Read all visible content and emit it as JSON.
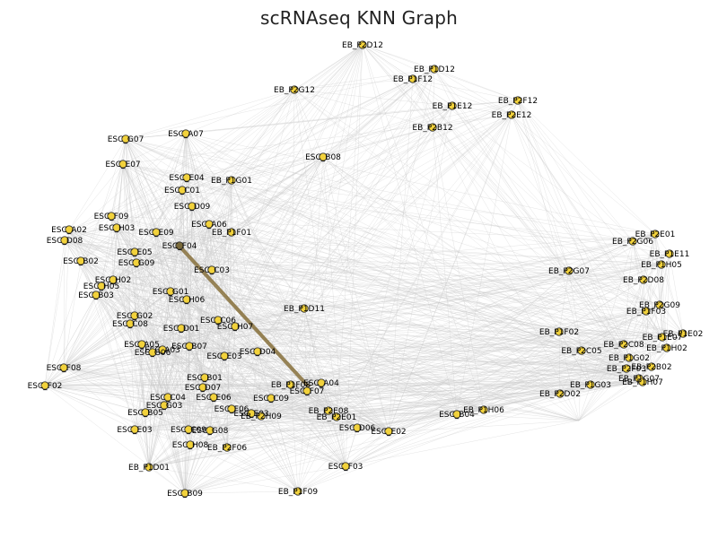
{
  "title": "scRNAseq KNN Graph",
  "colors": {
    "node_fill": "#f2d23c",
    "node_stroke": "#2b2b2b",
    "edge": "#c8c8c8",
    "highlight_node": "#7a6a3a",
    "highlight_edge": "#8a7340",
    "background": "#ffffff"
  },
  "nodes": [
    {
      "label": "EB_P2D12",
      "highlight": false
    },
    {
      "label": "EB_P1D12",
      "highlight": false
    },
    {
      "label": "EB_P1F12",
      "highlight": false
    },
    {
      "label": "EB_P2G12",
      "highlight": false
    },
    {
      "label": "EB_P2F12",
      "highlight": false
    },
    {
      "label": "EB_P1E12",
      "highlight": false
    },
    {
      "label": "EB_P2E12",
      "highlight": false
    },
    {
      "label": "EB_P2B12",
      "highlight": false
    },
    {
      "label": "ESC_G07",
      "highlight": false
    },
    {
      "label": "ESC_A07",
      "highlight": false
    },
    {
      "label": "ESC_B08",
      "highlight": false
    },
    {
      "label": "ESC_E07",
      "highlight": false
    },
    {
      "label": "ESC_E04",
      "highlight": false
    },
    {
      "label": "EB_P1G01",
      "highlight": false
    },
    {
      "label": "ESC_C01",
      "highlight": false
    },
    {
      "label": "ESC_D09",
      "highlight": false
    },
    {
      "label": "ESC_F09",
      "highlight": false
    },
    {
      "label": "ESC_H03",
      "highlight": false
    },
    {
      "label": "ESC_A06",
      "highlight": false
    },
    {
      "label": "EB_P1F01",
      "highlight": false
    },
    {
      "label": "ESC_A02",
      "highlight": false
    },
    {
      "label": "ESC_E09",
      "highlight": false
    },
    {
      "label": "ESC_D08",
      "highlight": false
    },
    {
      "label": "ESC_F04",
      "highlight": true
    },
    {
      "label": "ESC_E05",
      "highlight": false
    },
    {
      "label": "ESC_B02",
      "highlight": false
    },
    {
      "label": "ESC_G09",
      "highlight": false
    },
    {
      "label": "ESC_C03",
      "highlight": false
    },
    {
      "label": "ESC_H02",
      "highlight": false
    },
    {
      "label": "ESC_H05",
      "highlight": false
    },
    {
      "label": "ESC_B03",
      "highlight": false
    },
    {
      "label": "ESC_G01",
      "highlight": false
    },
    {
      "label": "ESC_H06",
      "highlight": false
    },
    {
      "label": "EB_P1D11",
      "highlight": false
    },
    {
      "label": "ESC_G02",
      "highlight": false
    },
    {
      "label": "ESC_C08",
      "highlight": false
    },
    {
      "label": "ESC_C06",
      "highlight": false
    },
    {
      "label": "ESC_H07",
      "highlight": false
    },
    {
      "label": "ESC_D01",
      "highlight": false
    },
    {
      "label": "ESC_A05",
      "highlight": false
    },
    {
      "label": "ESC_B07",
      "highlight": false
    },
    {
      "label": "ESC_A03",
      "highlight": false
    },
    {
      "label": "ESC_D04",
      "highlight": false
    },
    {
      "label": "ESC_G06",
      "highlight": false
    },
    {
      "label": "ESC_E03",
      "highlight": false
    },
    {
      "label": "ESC_F08",
      "highlight": false
    },
    {
      "label": "ESC_B01",
      "highlight": false
    },
    {
      "label": "ESC_F02",
      "highlight": false
    },
    {
      "label": "ESC_D07",
      "highlight": false
    },
    {
      "label": "EB_P1F08",
      "highlight": false
    },
    {
      "label": "ESC_A04",
      "highlight": false
    },
    {
      "label": "ESC_F07",
      "highlight": false
    },
    {
      "label": "ESC_C04",
      "highlight": false
    },
    {
      "label": "ESC_E06",
      "highlight": false
    },
    {
      "label": "ESC_C09",
      "highlight": false
    },
    {
      "label": "ESC_G03",
      "highlight": false
    },
    {
      "label": "ESC_B05",
      "highlight": false
    },
    {
      "label": "ESC_F06",
      "highlight": false
    },
    {
      "label": "ESC_E03",
      "highlight": false
    },
    {
      "label": "EB_P2H09",
      "highlight": false
    },
    {
      "label": "EB_P2E08",
      "highlight": false
    },
    {
      "label": "ESC_B04",
      "highlight": false
    },
    {
      "label": "EB_P2E01",
      "highlight": false
    },
    {
      "label": "EB_P1H06",
      "highlight": false
    },
    {
      "label": "ESC_E03",
      "highlight": false
    },
    {
      "label": "ESC_C09",
      "highlight": false
    },
    {
      "label": "ESC_G08",
      "highlight": false
    },
    {
      "label": "ESC_H08",
      "highlight": false
    },
    {
      "label": "EB_P2F06",
      "highlight": false
    },
    {
      "label": "ESC_D06",
      "highlight": false
    },
    {
      "label": "ESC_E02",
      "highlight": false
    },
    {
      "label": "EB_P1D01",
      "highlight": false
    },
    {
      "label": "ESC_F03",
      "highlight": false
    },
    {
      "label": "ESC_B09",
      "highlight": false
    },
    {
      "label": "EB_P1F09",
      "highlight": false
    },
    {
      "label": "EB_P2E01",
      "highlight": false
    },
    {
      "label": "EB_P2G06",
      "highlight": false
    },
    {
      "label": "EB_P1E11",
      "highlight": false
    },
    {
      "label": "EB_P1H05",
      "highlight": false
    },
    {
      "label": "EB_P2G07",
      "highlight": false
    },
    {
      "label": "EB_P2D08",
      "highlight": false
    },
    {
      "label": "EB_P2G09",
      "highlight": false
    },
    {
      "label": "EB_P1F03",
      "highlight": false
    },
    {
      "label": "EB_P1F02",
      "highlight": false
    },
    {
      "label": "EB_P1E02",
      "highlight": false
    },
    {
      "label": "EB_P1E07",
      "highlight": false
    },
    {
      "label": "EB_P2C05",
      "highlight": false
    },
    {
      "label": "EB_P2C08",
      "highlight": false
    },
    {
      "label": "EB_P1H02",
      "highlight": false
    },
    {
      "label": "EB_P1G02",
      "highlight": false
    },
    {
      "label": "EB_P2B02",
      "highlight": false
    },
    {
      "label": "EB_P2F03",
      "highlight": false
    },
    {
      "label": "EB_P1G07",
      "highlight": false
    },
    {
      "label": "EB_P1G03",
      "highlight": false
    },
    {
      "label": "EB_P2D02",
      "highlight": false
    },
    {
      "label": "EB_P1H07",
      "highlight": false
    }
  ]
}
